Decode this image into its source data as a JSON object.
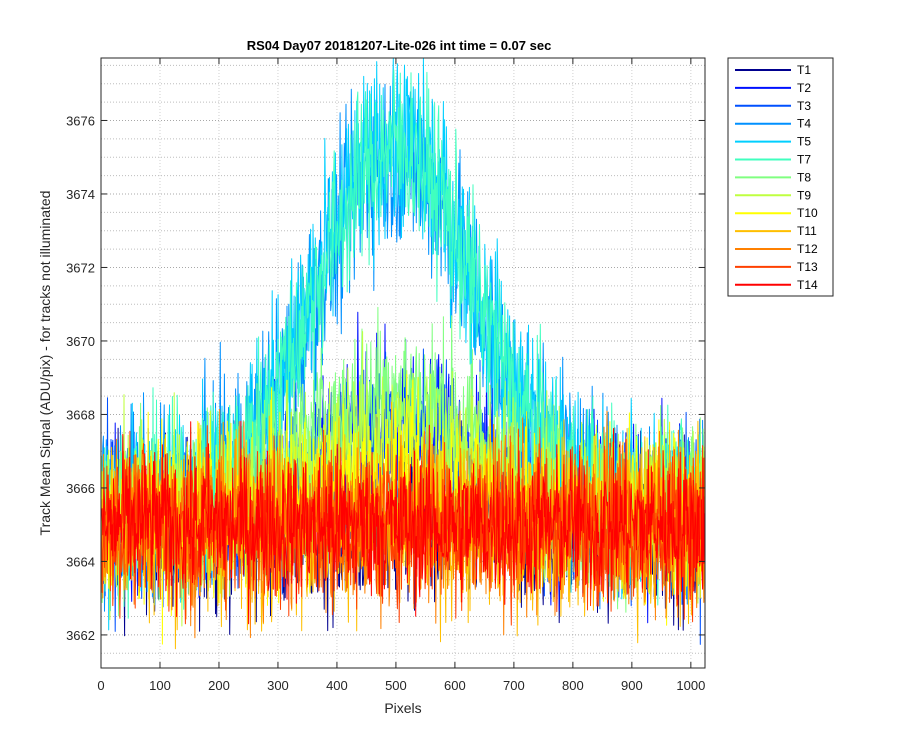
{
  "chart_data": {
    "type": "line",
    "title": "RS04 Day07 20181207-Lite-026 int time = 0.07 sec",
    "xlabel": "Pixels",
    "ylabel": "Track Mean Signal (ADU/pix) - for tracks not illuminated",
    "xlim": [
      0,
      1024
    ],
    "ylim": [
      3661.1,
      3677.7
    ],
    "xticks": [
      0,
      100,
      200,
      300,
      400,
      500,
      600,
      700,
      800,
      900,
      1000
    ],
    "yticks": [
      3662,
      3664,
      3666,
      3668,
      3670,
      3672,
      3674,
      3676
    ],
    "yminor_gridlines": [
      3661.5,
      3662.5,
      3663,
      3663.5,
      3664.5,
      3665,
      3665.5,
      3666.5,
      3667,
      3667.5,
      3668.5,
      3669,
      3669.5,
      3670.5,
      3671,
      3671.5,
      3672.5,
      3673,
      3673.5,
      3674.5,
      3675,
      3675.5,
      3676.5,
      3677,
      3677.5
    ],
    "grid": true,
    "legend_position": "outside-top-right",
    "series": [
      {
        "name": "T1",
        "color": "#00008f",
        "baseline": 3665.0,
        "peak": 0.0,
        "noise": 3.0
      },
      {
        "name": "T2",
        "color": "#0010ff",
        "baseline": 3665.2,
        "peak": 2.5,
        "noise": 3.0
      },
      {
        "name": "T3",
        "color": "#0050ff",
        "baseline": 3665.2,
        "peak": 2.2,
        "noise": 3.0
      },
      {
        "name": "T4",
        "color": "#0090ff",
        "baseline": 3665.5,
        "peak": 9.5,
        "noise": 3.2
      },
      {
        "name": "T5",
        "color": "#00cfff",
        "baseline": 3665.5,
        "peak": 10.0,
        "noise": 3.2
      },
      {
        "name": "T7",
        "color": "#40ffbf",
        "baseline": 3665.5,
        "peak": 9.8,
        "noise": 3.0
      },
      {
        "name": "T8",
        "color": "#80ff80",
        "baseline": 3665.4,
        "peak": 3.2,
        "noise": 3.0
      },
      {
        "name": "T9",
        "color": "#bfff40",
        "baseline": 3665.3,
        "peak": 2.0,
        "noise": 3.0
      },
      {
        "name": "T10",
        "color": "#ffff00",
        "baseline": 3665.2,
        "peak": 0.8,
        "noise": 3.0
      },
      {
        "name": "T11",
        "color": "#ffbf00",
        "baseline": 3665.0,
        "peak": 0.0,
        "noise": 3.2
      },
      {
        "name": "T12",
        "color": "#ff8000",
        "baseline": 3665.0,
        "peak": 0.0,
        "noise": 3.0
      },
      {
        "name": "T13",
        "color": "#ff4000",
        "baseline": 3665.0,
        "peak": 0.0,
        "noise": 2.8
      },
      {
        "name": "T14",
        "color": "#ff0000",
        "baseline": 3665.0,
        "peak": 0.0,
        "noise": 2.6
      }
    ],
    "peak_center_x": 500,
    "peak_width_x": 190,
    "samples": 1024
  }
}
